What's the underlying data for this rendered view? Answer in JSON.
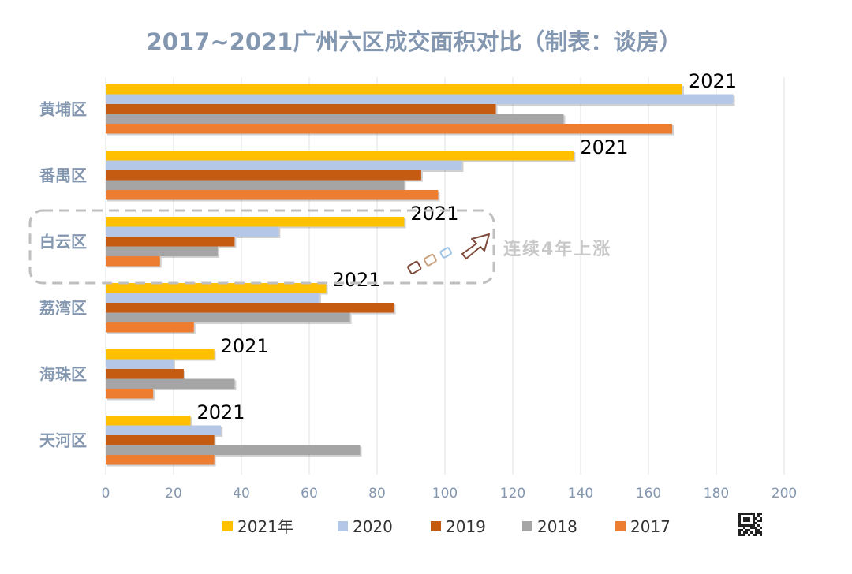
{
  "chart_data": {
    "type": "bar",
    "orientation": "horizontal",
    "title": "2017~2021广州六区成交面积对比（制表：谈房）",
    "xlabel": "",
    "ylabel": "",
    "xlim": [
      0,
      200
    ],
    "x_ticks": [
      0,
      20,
      40,
      60,
      80,
      100,
      120,
      140,
      160,
      180,
      200
    ],
    "grid": true,
    "legend_position": "bottom",
    "categories": [
      "黄埔区",
      "番禺区",
      "白云区",
      "荔湾区",
      "海珠区",
      "天河区"
    ],
    "series": [
      {
        "name": "2021年",
        "color": "#FFC000",
        "values": [
          170,
          138,
          88,
          65,
          32,
          25
        ]
      },
      {
        "name": "2020",
        "color": "#B4C7E7",
        "values": [
          185,
          105,
          51,
          63,
          20,
          34
        ]
      },
      {
        "name": "2019",
        "color": "#C55A11",
        "values": [
          115,
          93,
          38,
          85,
          23,
          32
        ]
      },
      {
        "name": "2018",
        "color": "#A5A5A5",
        "values": [
          135,
          88,
          33,
          72,
          38,
          75
        ]
      },
      {
        "name": "2017",
        "color": "#ED7D31",
        "values": [
          167,
          98,
          16,
          26,
          14,
          32
        ]
      }
    ],
    "data_labels": [
      "2021",
      "2021",
      "2021",
      "2021",
      "2021",
      "2021"
    ],
    "annotation": {
      "text": "连续4年上涨",
      "highlight_category": "白云区"
    }
  },
  "colors": {
    "title": "#8497B0",
    "category_label": "#8497B0",
    "tick_label": "#8497B0",
    "grid": "#E0E0E0",
    "annotation_text": "#C9C9C9",
    "highlight_border": "#BFBFBF",
    "arrow_stroke": "#7F4B3A"
  },
  "icons": {
    "qr": "qr-code-icon"
  }
}
